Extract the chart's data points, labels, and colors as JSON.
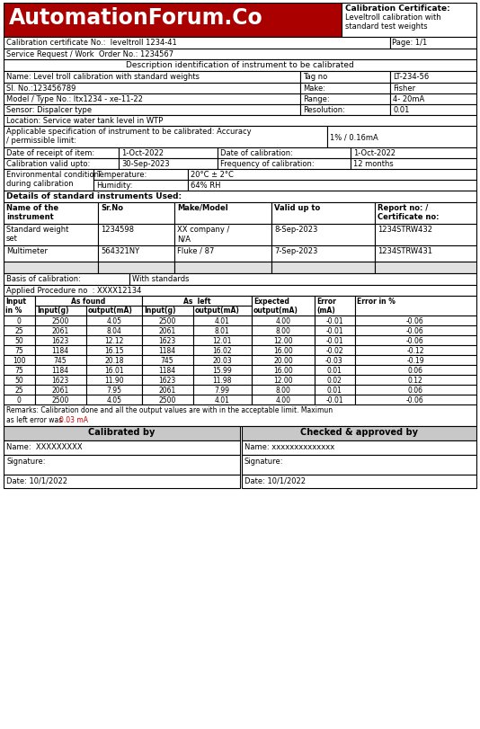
{
  "title_left": "AutomationForum.Co",
  "title_right_line1": "Calibration Certificate:",
  "title_right_line2": "Leveltroll calibration with",
  "title_right_line3": "standard test weights",
  "cert_no": "Calibration certificate No.:  leveltroll 1234-41",
  "page": "Page: 1/1",
  "service_req": "Service Request / Work  Order No.: 1234567",
  "desc_header": "Description identification of instrument to be calibrated",
  "name_label": "Name: Level troll calibration with standard weights",
  "tag_label": "Tag no",
  "tag_val": "LT-234-56",
  "sl_label": "Sl. No.:123456789",
  "make_label": "Make:",
  "make_val": "Fisher",
  "model_label": "Model / Type No.: ltx1234 - xe-11-22",
  "range_label": "Range:",
  "range_val": "4- 20mA",
  "sensor_label": "Sensor: Dispalcer type",
  "resolution_label": "Resolution:",
  "resolution_val": "0.01",
  "location_label": "Location: Service water tank level in WTP",
  "applicable_text": "Applicable specification of instrument to be calibrated: Accuracy\n/ permissible limit:",
  "applicable_val": "1% / 0.16mA",
  "date_receipt_label": "Date of receipt of item:",
  "date_receipt_val": "1-Oct-2022",
  "date_cal_label": "Date of calibration:",
  "date_cal_val": "1-Oct-2022",
  "cal_valid_label": "Calibration valid upto:",
  "cal_valid_val": "30-Sep-2023",
  "freq_label": "Frequency of calibration:",
  "freq_val": "12 months",
  "env_label": "Environmental condition\nduring calibration",
  "temp_label": "Temperature:",
  "temp_val": "20°C ± 2°C",
  "humidity_label": "Humidity:",
  "humidity_val": "64% RH",
  "std_instr_header": "Details of standard instruments Used:",
  "std_col1": "Name of the\ninstrument",
  "std_col2": "Sr.No",
  "std_col3": "Make/Model",
  "std_col4": "Valid up to",
  "std_col5": "Report no: /\nCertificate no:",
  "std_row1": [
    "Standard weight\nset",
    "1234598",
    "XX company /\nN/A",
    "8-Sep-2023",
    "1234STRW432"
  ],
  "std_row2": [
    "Multimeter",
    "564321NY",
    "Fluke / 87",
    "7-Sep-2023",
    "1234STRW431"
  ],
  "basis_label": "Basis of calibration:",
  "basis_val": "With standards",
  "procedure_label": "Applied Procedure no  : XXXX12134",
  "table_data": [
    [
      0,
      2500,
      4.05,
      2500,
      4.01,
      4.0,
      -0.01,
      -0.06
    ],
    [
      25,
      2061,
      8.04,
      2061,
      8.01,
      8.0,
      -0.01,
      -0.06
    ],
    [
      50,
      1623,
      12.12,
      1623,
      12.01,
      12.0,
      -0.01,
      -0.06
    ],
    [
      75,
      1184,
      16.15,
      1184,
      16.02,
      16.0,
      -0.02,
      -0.12
    ],
    [
      100,
      745,
      20.18,
      745,
      20.03,
      20.0,
      -0.03,
      -0.19
    ],
    [
      75,
      1184,
      16.01,
      1184,
      15.99,
      16.0,
      0.01,
      0.06
    ],
    [
      50,
      1623,
      11.9,
      1623,
      11.98,
      12.0,
      0.02,
      0.12
    ],
    [
      25,
      2061,
      7.95,
      2061,
      7.99,
      8.0,
      0.01,
      0.06
    ],
    [
      0,
      2500,
      4.05,
      2500,
      4.01,
      4.0,
      -0.01,
      -0.06
    ]
  ],
  "remarks_line1": "Remarks: Calibration done and all the output values are with in the acceptable limit. Maximun",
  "remarks_line2_pre": "as left error was ",
  "remarks_highlight": "0.03 mA",
  "calibrated_by": "Calibrated by",
  "checked_by": "Checked & approved by",
  "cal_name": "Name:  XXXXXXXXX",
  "chk_name": "Name: xxxxxxxxxxxxxx",
  "cal_sig": "Signature:",
  "chk_sig": "Signature:",
  "cal_date": "Date: 10/1/2022",
  "chk_date": "Date: 10/1/2022",
  "header_bg": "#aa0000",
  "header_text": "#ffffff",
  "border_color": "#000000",
  "gray_bg": "#c8c8c8",
  "red_text": "#cc0000",
  "font": "DejaVu Sans"
}
